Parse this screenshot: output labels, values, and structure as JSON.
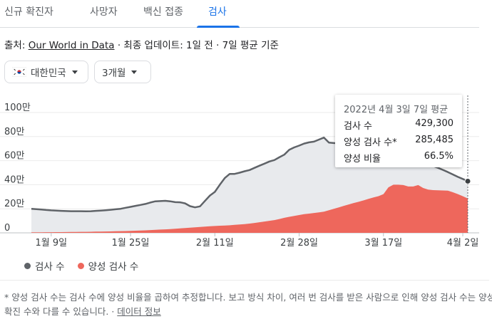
{
  "tabs": [
    {
      "label": "신규 확진자",
      "active": false
    },
    {
      "label": "사망자",
      "active": false
    },
    {
      "label": "백신 접종",
      "active": false
    },
    {
      "label": "검사",
      "active": true
    }
  ],
  "source": {
    "prefix": "출처: ",
    "link": "Our World in Data",
    "suffix": " · 최종 업데이트: 1일 전 · 7일 평균 기준"
  },
  "filters": {
    "country": "대한민국",
    "period": "3개월"
  },
  "colors": {
    "accent": "#1a73e8",
    "tests": "#5f6368",
    "positive": "#ee675c",
    "area": "#e8eaed"
  },
  "tooltip": {
    "title": "2022년 4월 3일 7일 평균",
    "rows": [
      {
        "label": "검사 수",
        "value": "429,300"
      },
      {
        "label": "양성 검사 수*",
        "value": "285,485"
      },
      {
        "label": "양성 비율",
        "value": "66.5%"
      }
    ]
  },
  "legend": {
    "tests": "검사 수",
    "positive": "양성 검사 수"
  },
  "footnote": {
    "text": "* 양성 검사 수는 검사 수에 양성 비율을 곱하여 추정합니다. 보고 방식 차이, 여러 번 검사를 받은 사람으로 인해 양성 검사 수는 양성 확진 수와 다를 수 있습니다. · ",
    "link": "데이터 정보"
  },
  "chart_data": {
    "type": "area",
    "y_ticks": [
      {
        "value": 0,
        "label": "0"
      },
      {
        "value": 200000,
        "label": "20만"
      },
      {
        "value": 400000,
        "label": "40만"
      },
      {
        "value": 600000,
        "label": "60만"
      },
      {
        "value": 800000,
        "label": "80만"
      },
      {
        "value": 1000000,
        "label": "100만"
      }
    ],
    "ylim": [
      0,
      1000000
    ],
    "x_ticks": [
      {
        "index": 4,
        "label": "1월 9일"
      },
      {
        "index": 20,
        "label": "1월 25일"
      },
      {
        "index": 37,
        "label": "2월 11일"
      },
      {
        "index": 54,
        "label": "2월 28일"
      },
      {
        "index": 71,
        "label": "3월 17일"
      },
      {
        "index": 87,
        "label": "4월 2일"
      }
    ],
    "x_count": 89,
    "legend_position": "bottom",
    "series": [
      {
        "name": "검사 수",
        "values": [
          200000,
          197000,
          194000,
          190000,
          187000,
          185000,
          183000,
          181000,
          180000,
          180000,
          180000,
          179000,
          180000,
          183000,
          185000,
          188000,
          192000,
          196000,
          200000,
          208000,
          216000,
          224000,
          232000,
          240000,
          252000,
          262000,
          264000,
          266000,
          262000,
          255000,
          254000,
          245000,
          222000,
          212000,
          220000,
          265000,
          310000,
          340000,
          400000,
          455000,
          490000,
          490000,
          500000,
          512000,
          522000,
          540000,
          558000,
          575000,
          593000,
          605000,
          628000,
          650000,
          690000,
          710000,
          725000,
          742000,
          752000,
          758000,
          775000,
          792000,
          750000,
          746000,
          745000,
          747000,
          748000,
          750000,
          752000,
          755000,
          758000,
          760000,
          760000,
          780000,
          785000,
          770000,
          730000,
          690000,
          650000,
          615000,
          600000,
          580000,
          570000,
          555000,
          540000,
          523000,
          505000,
          485000,
          465000,
          448000,
          429300
        ]
      },
      {
        "name": "양성 검사 수",
        "values": [
          4000,
          4500,
          5000,
          5200,
          5500,
          6000,
          6200,
          6800,
          7000,
          7500,
          8000,
          8500,
          9000,
          10000,
          10500,
          11000,
          12000,
          13000,
          14000,
          15000,
          16000,
          17500,
          19000,
          21000,
          23000,
          25000,
          27000,
          29000,
          31000,
          34000,
          37000,
          40000,
          43000,
          46000,
          49000,
          52000,
          55000,
          57000,
          59000,
          61000,
          63000,
          66000,
          69000,
          73000,
          77000,
          82000,
          88000,
          94000,
          100000,
          106000,
          115000,
          125000,
          133000,
          140000,
          148000,
          155000,
          160000,
          165000,
          170000,
          176000,
          188000,
          200000,
          212000,
          224000,
          236000,
          248000,
          258000,
          270000,
          282000,
          294000,
          305000,
          322000,
          378000,
          400000,
          400000,
          397000,
          385000,
          385000,
          397000,
          373000,
          360000,
          355000,
          353000,
          352000,
          350000,
          337000,
          322000,
          305000,
          285485
        ]
      }
    ]
  }
}
